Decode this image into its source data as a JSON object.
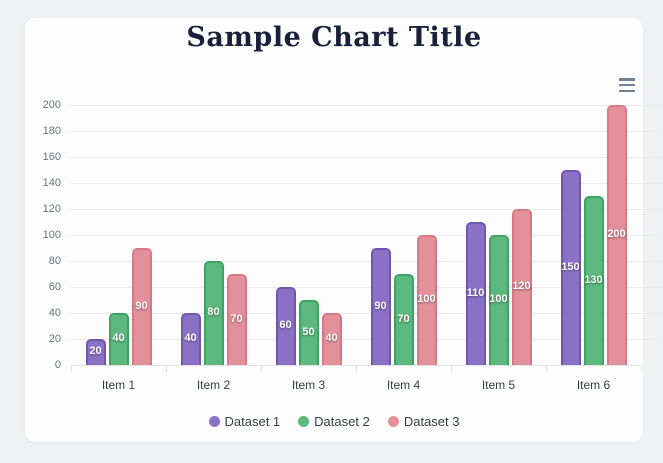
{
  "header": {
    "title": "Sample Chart Title"
  },
  "chart_data": {
    "type": "bar",
    "title": "Sample Chart Title",
    "categories": [
      "Item 1",
      "Item 2",
      "Item 3",
      "Item 4",
      "Item 5",
      "Item 6"
    ],
    "series": [
      {
        "name": "Dataset 1",
        "values": [
          20,
          40,
          60,
          90,
          110,
          150
        ],
        "fill": "#8b71c5",
        "stroke": "#7456ae"
      },
      {
        "name": "Dataset 2",
        "values": [
          40,
          80,
          50,
          70,
          100,
          130
        ],
        "fill": "#5cb87c",
        "stroke": "#3da263"
      },
      {
        "name": "Dataset 3",
        "values": [
          90,
          70,
          40,
          100,
          120,
          200
        ],
        "fill": "#e2909a",
        "stroke": "#d87884"
      }
    ],
    "ylim": [
      0,
      200
    ],
    "ytick_step": 20,
    "grid": true,
    "data_labels": true,
    "legend_position": "bottom",
    "colors": {
      "title": "#19213a",
      "grid": "#e9eaec",
      "axis": "#dfe1e5",
      "ylabel": "#69707a",
      "xlabel": "#373d3f",
      "page_bg": "#f0f1f2",
      "card_bg": "#fdfdfe",
      "menu_icon": "#6e8192",
      "data_label_text": "#ffffff"
    }
  }
}
